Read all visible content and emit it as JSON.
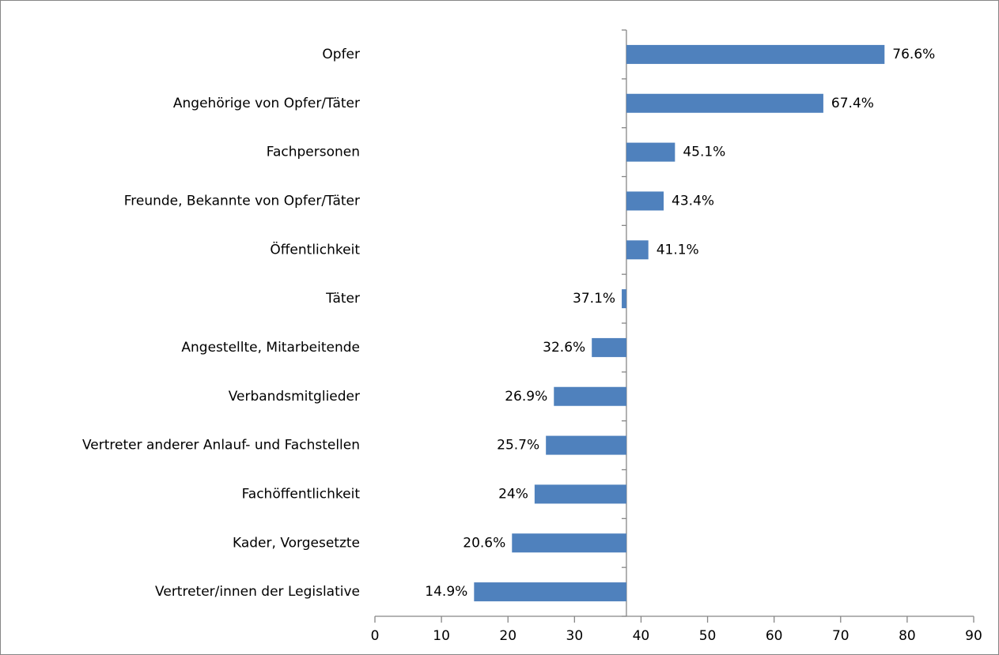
{
  "chart_data": {
    "type": "bar",
    "orientation": "horizontal",
    "categories": [
      "Opfer",
      "Angehörige von Opfer/Täter",
      "Fachpersonen",
      "Freunde, Bekannte von Opfer/Täter",
      "Öffentlichkeit",
      "Täter",
      "Angestellte, Mitarbeitende",
      "Verbandsmitglieder",
      "Vertreter anderer Anlauf- und Fachstellen",
      "Fachöffentlichkeit",
      "Kader, Vorgesetzte",
      "Vertreter/innen der Legislative"
    ],
    "values": [
      76.6,
      67.4,
      45.1,
      43.4,
      41.1,
      37.1,
      32.6,
      26.9,
      25.7,
      24,
      20.6,
      14.9
    ],
    "value_labels": [
      "76.6%",
      "67.4%",
      "45.1%",
      "43.4%",
      "41.1%",
      "37.1%",
      "32.6%",
      "26.9%",
      "25.7%",
      "24%",
      "20.6%",
      "14.9%"
    ],
    "color": "#4f81bd",
    "axis_crosses_at": 37.8,
    "xlim": [
      0,
      90
    ],
    "xticks": [
      0,
      10,
      20,
      30,
      40,
      50,
      60,
      70,
      80,
      90
    ],
    "grid": false
  }
}
